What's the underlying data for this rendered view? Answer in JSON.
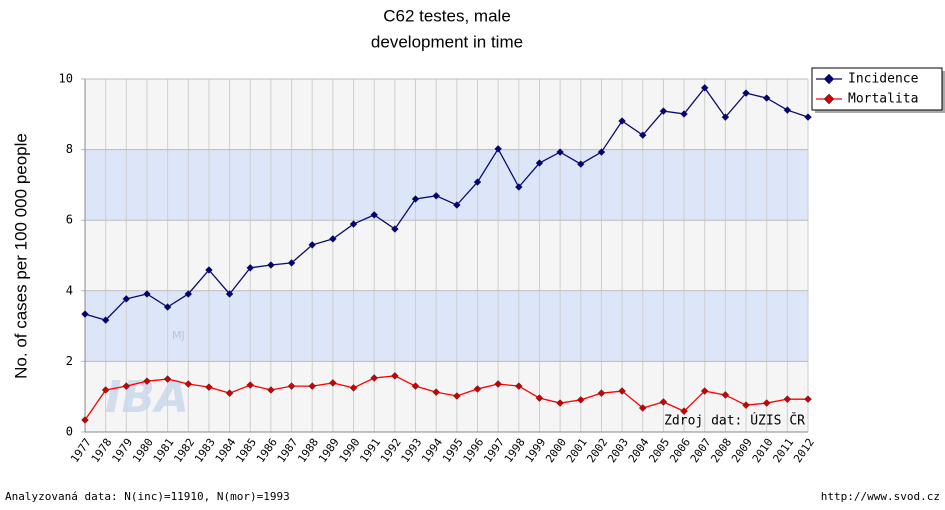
{
  "chart_data": {
    "type": "line",
    "title": [
      "C62 testes, male",
      "development in time"
    ],
    "y_label": "No. of cases per 100 000 people",
    "categories": [
      "1977",
      "1978",
      "1979",
      "1980",
      "1981",
      "1982",
      "1983",
      "1984",
      "1985",
      "1986",
      "1987",
      "1988",
      "1989",
      "1990",
      "1991",
      "1992",
      "1993",
      "1994",
      "1995",
      "1996",
      "1997",
      "1998",
      "1999",
      "2000",
      "2001",
      "2002",
      "2003",
      "2004",
      "2005",
      "2006",
      "2007",
      "2008",
      "2009",
      "2010",
      "2011",
      "2012"
    ],
    "series": [
      {
        "name": "Incidence",
        "color": "#0b0b6e",
        "marker_color": "#000080",
        "values": [
          3.34,
          3.17,
          3.77,
          3.91,
          3.54,
          3.91,
          4.59,
          3.91,
          4.65,
          4.73,
          4.79,
          5.3,
          5.47,
          5.89,
          6.15,
          5.75,
          6.6,
          6.69,
          6.43,
          7.08,
          8.02,
          6.94,
          7.62,
          7.93,
          7.59,
          7.93,
          8.81,
          8.41,
          9.09,
          9.01,
          9.75,
          8.92,
          9.6,
          9.46,
          9.12,
          8.92
        ]
      },
      {
        "name": "Mortalita",
        "color": "#ff0000",
        "marker_color": "#cc0000",
        "values": [
          0.34,
          1.19,
          1.3,
          1.44,
          1.5,
          1.36,
          1.27,
          1.1,
          1.33,
          1.19,
          1.3,
          1.3,
          1.39,
          1.25,
          1.53,
          1.59,
          1.3,
          1.13,
          1.02,
          1.22,
          1.36,
          1.3,
          0.96,
          0.82,
          0.91,
          1.1,
          1.16,
          0.68,
          0.85,
          0.59,
          1.16,
          1.05,
          0.76,
          0.82,
          0.93,
          0.93
        ]
      }
    ],
    "ylim": [
      0,
      10
    ],
    "yticks": [
      0,
      2,
      4,
      6,
      8,
      10
    ],
    "band_colors": [
      "#f5f5f5",
      "#dce6f8"
    ],
    "source": "Zdroj dat: ÚZIS ČR",
    "watermark": [
      "IBA",
      "MJ"
    ],
    "footer_left": "Analyzovaná data: N(inc)=11910, N(mor)=1993",
    "footer_right": "http://www.svod.cz",
    "legend": "top-right"
  }
}
